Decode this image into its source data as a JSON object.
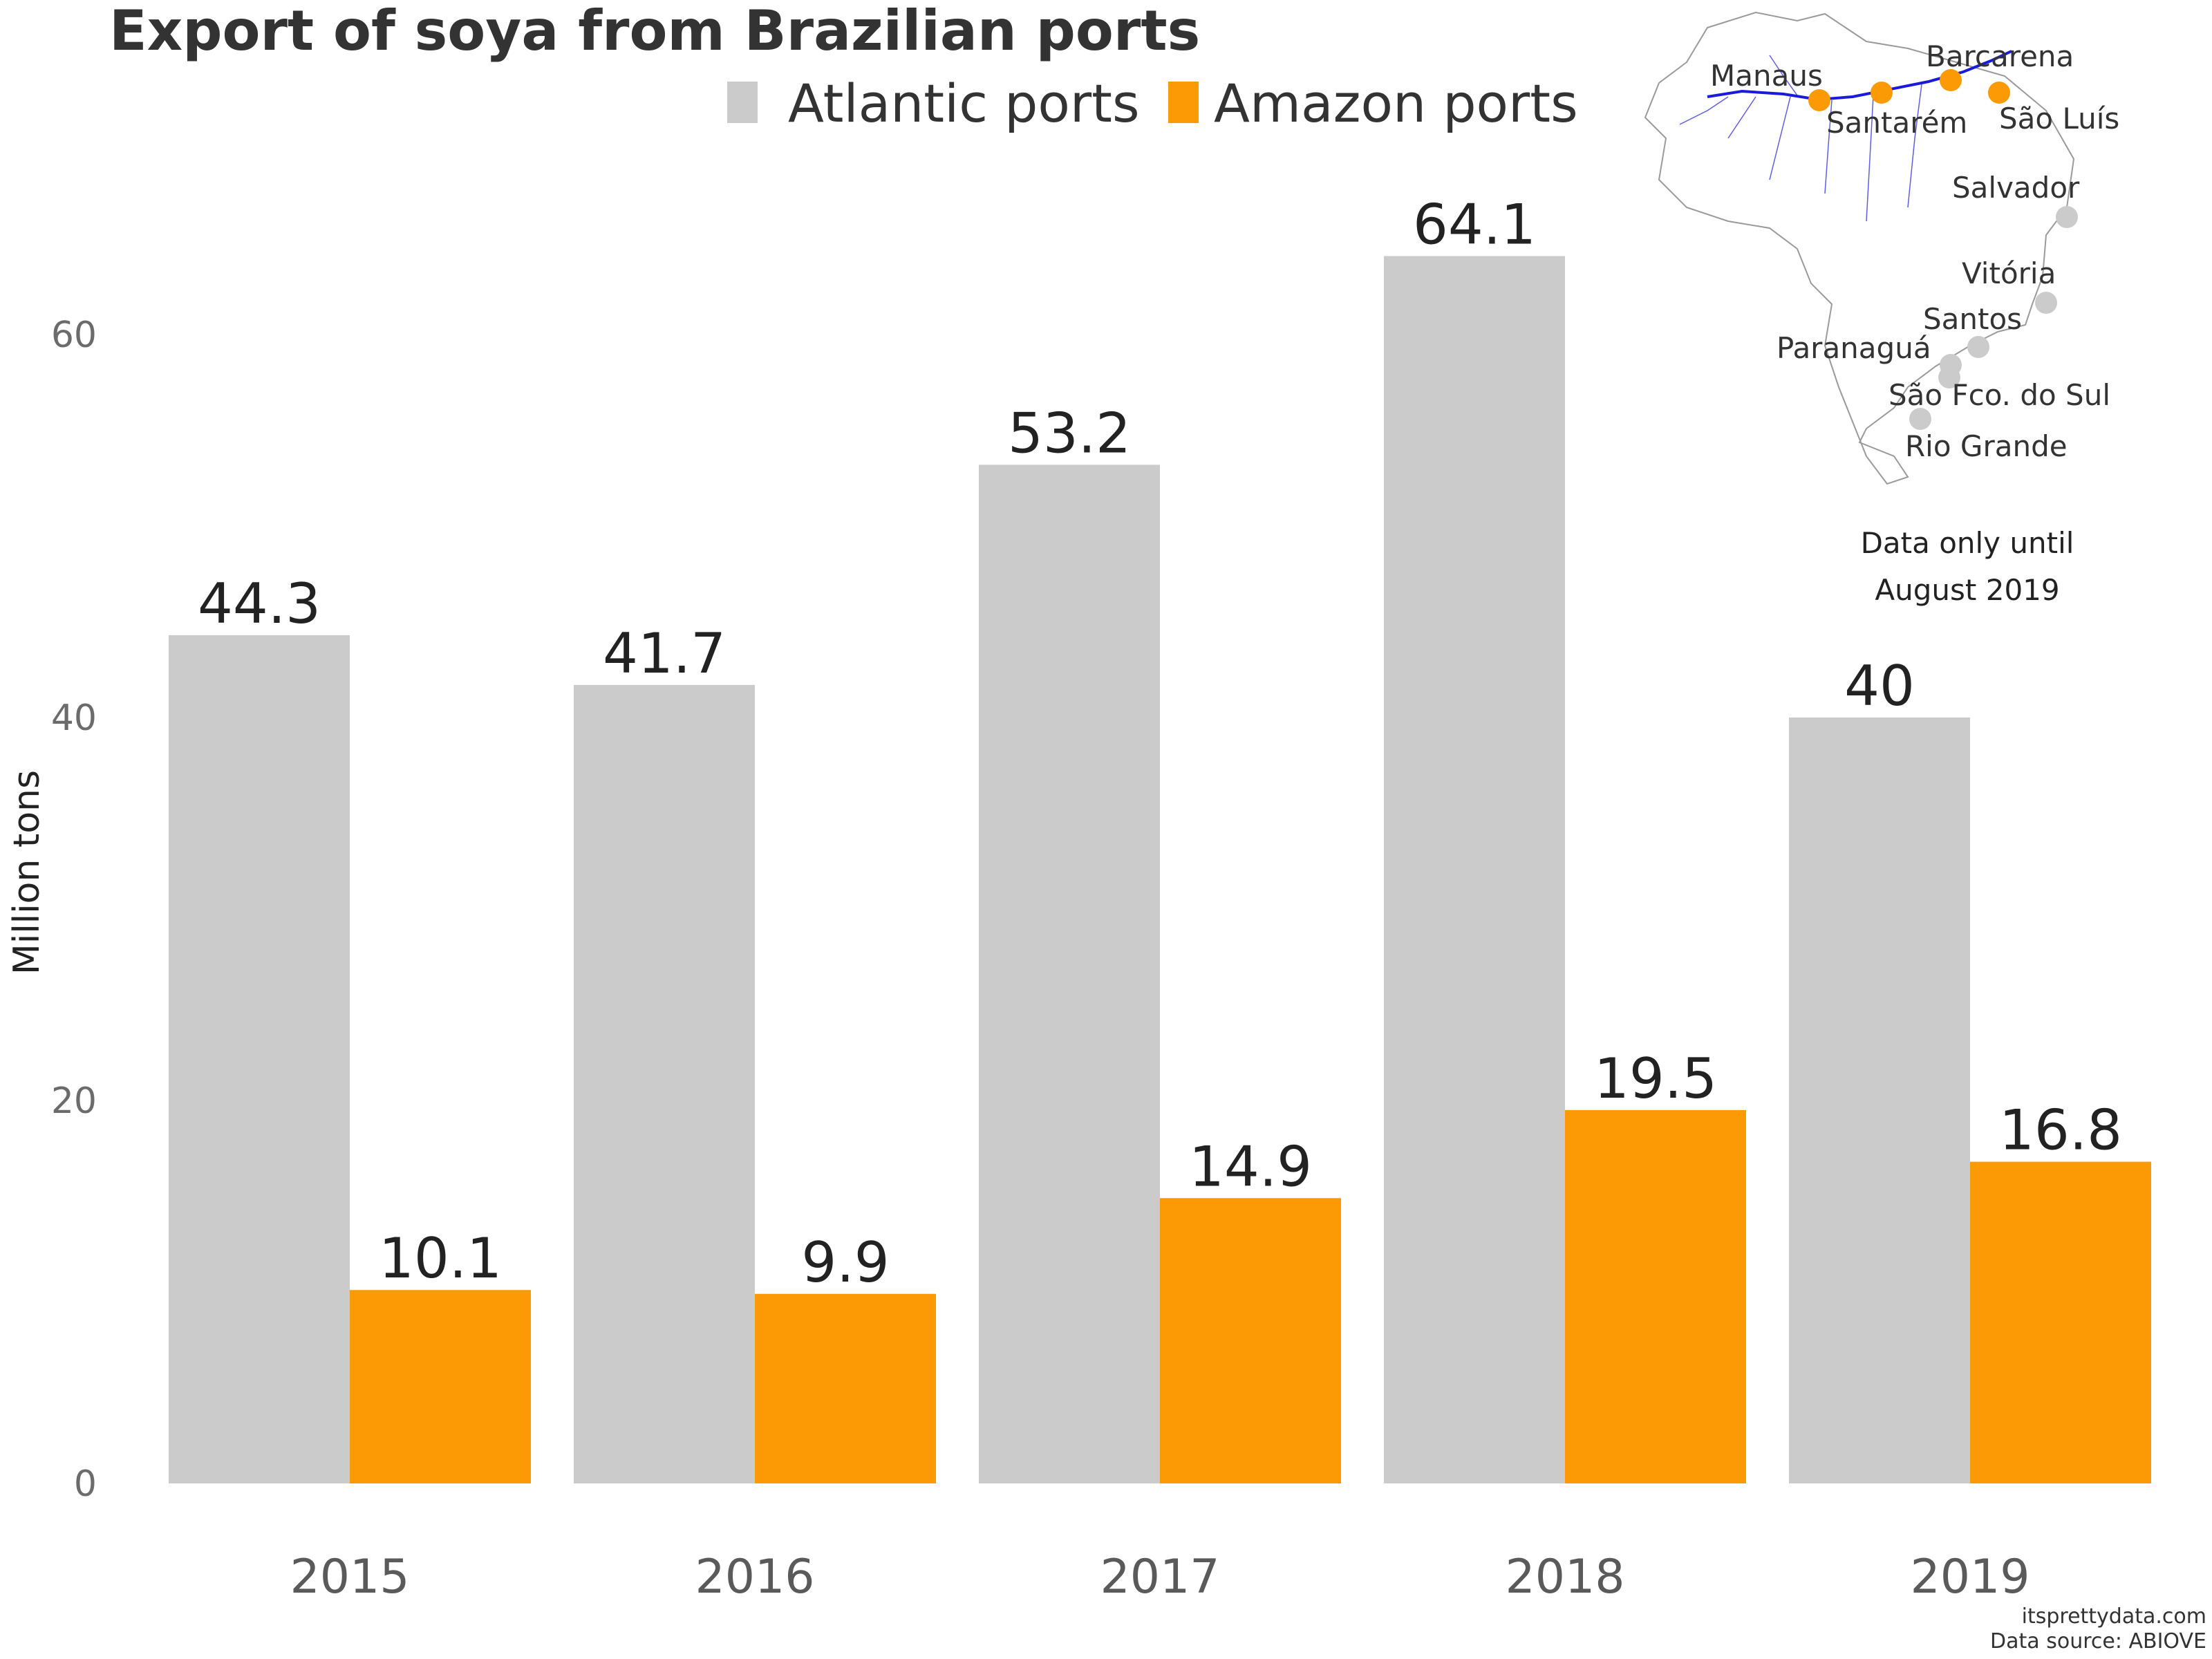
{
  "chart_data": {
    "type": "bar",
    "title": "Export of soya from Brazilian ports",
    "ylabel": "Million tons",
    "xlabel": "",
    "ylim": [
      0,
      66
    ],
    "yticks": [
      0,
      20,
      40,
      60
    ],
    "categories": [
      "2015",
      "2016",
      "2017",
      "2018",
      "2019"
    ],
    "series": [
      {
        "name": "Atlantic ports",
        "color": "#cbcbcb",
        "values": [
          44.3,
          41.7,
          53.2,
          64.1,
          40
        ]
      },
      {
        "name": "Amazon ports",
        "color": "#fb9a04",
        "values": [
          10.1,
          9.9,
          14.9,
          19.5,
          16.8
        ]
      }
    ],
    "value_labels": [
      [
        "44.3",
        "41.7",
        "53.2",
        "64.1",
        "40"
      ],
      [
        "10.1",
        "9.9",
        "14.9",
        "19.5",
        "16.8"
      ]
    ],
    "legend_position": "top",
    "grid": false
  },
  "inset_map": {
    "amazon_ports": [
      "Manaus",
      "Santarém",
      "Barcarena",
      "São Luís"
    ],
    "atlantic_ports": [
      "Salvador",
      "Vitória",
      "Santos",
      "Paranaguá",
      "São Fco. do Sul",
      "Rio Grande"
    ],
    "river_color": "#1a1adb",
    "note_line1": "Data only until",
    "note_line2": "August 2019"
  },
  "credits": {
    "site": "itsprettydata.com",
    "source": "Data source: ABIOVE"
  }
}
